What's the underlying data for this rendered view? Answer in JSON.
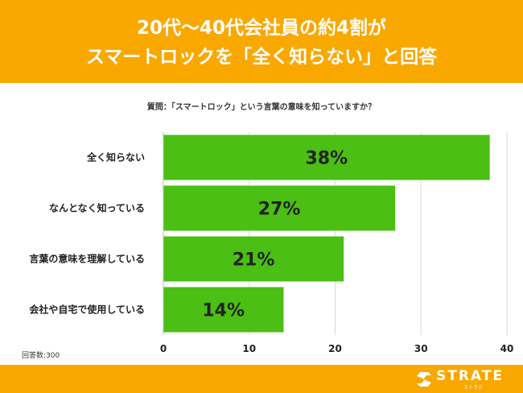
{
  "header": {
    "title_line1": "20代〜40代会社員の約4割が",
    "title_line2": "スマートロックを「全く知らない」と回答"
  },
  "chart_data": {
    "type": "bar",
    "orientation": "horizontal",
    "title": "質問：「スマートロック」という言葉の意味を知っていますか？",
    "categories": [
      "全く知らない",
      "なんとなく知っている",
      "言葉の意味を理解している",
      "会社や自宅で使用している"
    ],
    "values": [
      38,
      27,
      21,
      14
    ],
    "data_labels": [
      "38%",
      "27%",
      "21%",
      "14%"
    ],
    "xlim": [
      0,
      40
    ],
    "xticks": [
      0,
      10,
      20,
      30,
      40
    ],
    "xtick_labels": [
      "0",
      "10",
      "20",
      "30",
      "40"
    ],
    "xlabel": "",
    "ylabel": "",
    "grid": true,
    "bar_color": "#4bbf13"
  },
  "note": "回答数:300",
  "footer": {
    "logo_text": "STRATE",
    "logo_sub": "ストラテ"
  },
  "colors": {
    "accent": "#f9a800",
    "bar": "#4bbf13"
  }
}
